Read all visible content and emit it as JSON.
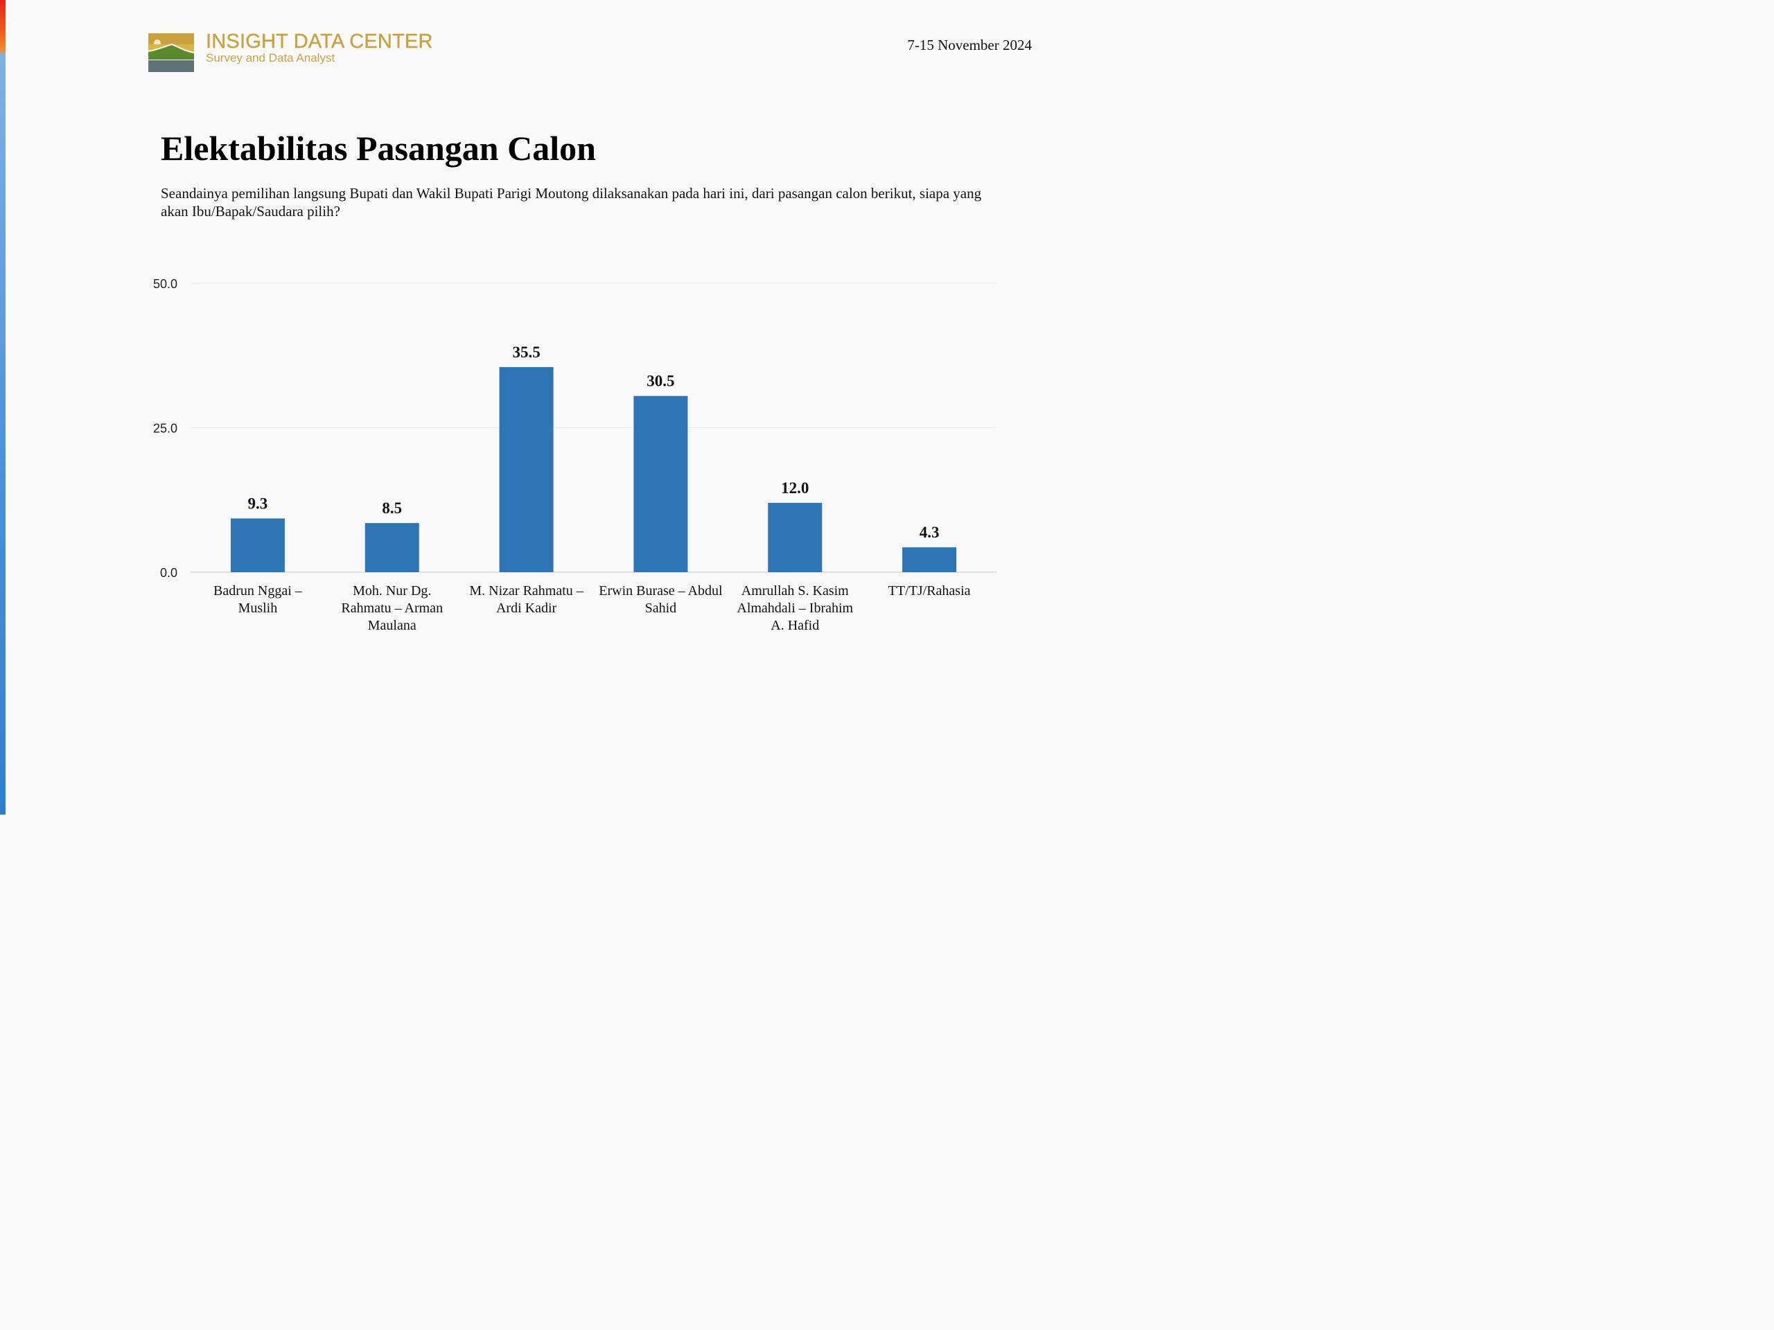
{
  "header": {
    "brand_name": "INSIGHT DATA CENTER",
    "brand_tagline": "Survey and Data Analyst",
    "date": "7-15 November 2024"
  },
  "colors": {
    "accent_gold": "#c9a23f",
    "bar": "#2e75b6",
    "logo_green": "#5a8a2e",
    "logo_slate": "#5e7478"
  },
  "chart_data": {
    "type": "bar",
    "title": "Elektabilitas Pasangan Calon",
    "subtitle": "Seandainya pemilihan langsung Bupati dan Wakil Bupati Parigi Moutong dilaksanakan pada hari ini, dari pasangan calon berikut, siapa yang akan Ibu/Bapak/Saudara pilih?",
    "categories": [
      "Badrun Nggai – Muslih",
      "Moh. Nur Dg. Rahmatu – Arman Maulana",
      "M. Nizar Rahmatu – Ardi Kadir",
      "Erwin Burase – Abdul Sahid",
      "Amrullah S. Kasim Almahdali – Ibrahim A. Hafid",
      "TT/TJ/Rahasia"
    ],
    "values": [
      9.3,
      8.5,
      35.5,
      30.5,
      12.0,
      4.3
    ],
    "value_labels": [
      "9.3",
      "8.5",
      "35.5",
      "30.5",
      "12.0",
      "4.3"
    ],
    "xlabel": "",
    "ylabel": "",
    "ylim": [
      0,
      50
    ],
    "yticks": [
      0,
      25,
      50
    ],
    "ytick_labels": [
      "0.0",
      "25.0",
      "50.0"
    ],
    "grid": true,
    "legend": "none"
  }
}
